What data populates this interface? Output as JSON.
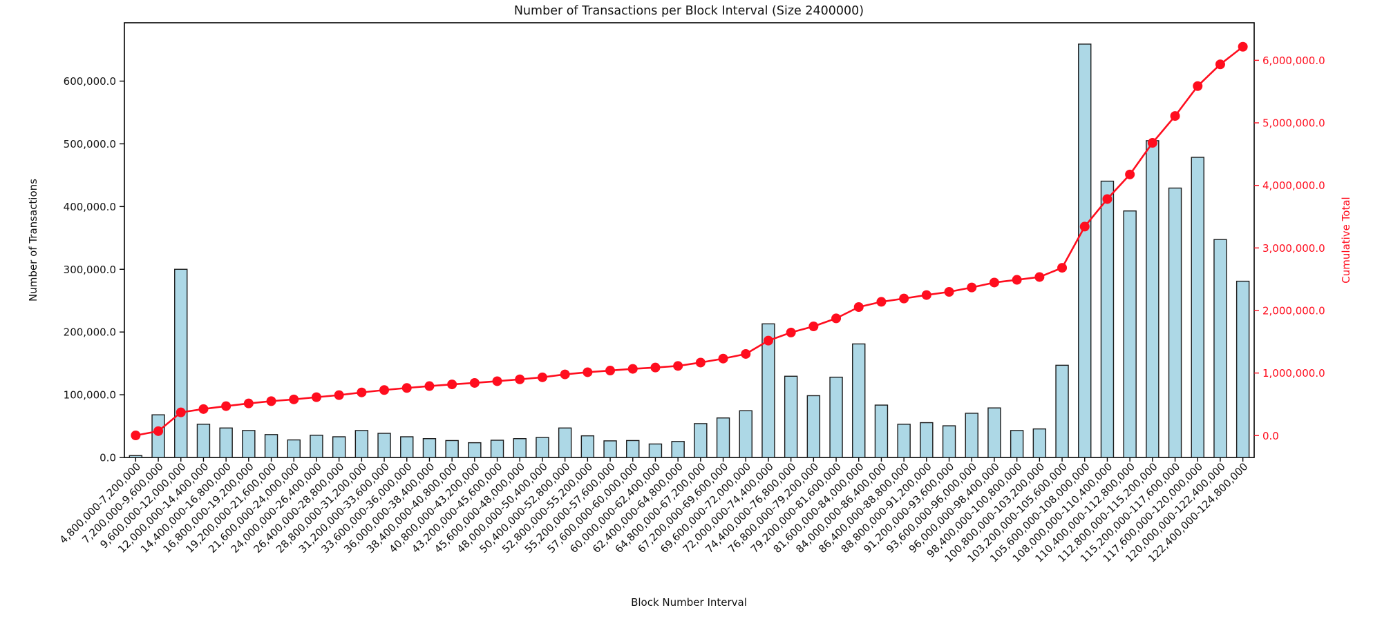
{
  "chart_data": {
    "type": "bar",
    "title": "Number of Transactions per Block Interval (Size 2400000)",
    "xlabel": "Block Number Interval",
    "ylabel_left": "Number of Transactions",
    "ylabel_right": "Cumulative Total",
    "grid": false,
    "legend_position": "none",
    "background_color": "#ffffff",
    "categories": [
      "4,800,000-7,200,000",
      "7,200,000-9,600,000",
      "9,600,000-12,000,000",
      "12,000,000-14,400,000",
      "14,400,000-16,800,000",
      "16,800,000-19,200,000",
      "19,200,000-21,600,000",
      "21,600,000-24,000,000",
      "24,000,000-26,400,000",
      "26,400,000-28,800,000",
      "28,800,000-31,200,000",
      "31,200,000-33,600,000",
      "33,600,000-36,000,000",
      "36,000,000-38,400,000",
      "38,400,000-40,800,000",
      "40,800,000-43,200,000",
      "43,200,000-45,600,000",
      "45,600,000-48,000,000",
      "48,000,000-50,400,000",
      "50,400,000-52,800,000",
      "52,800,000-55,200,000",
      "55,200,000-57,600,000",
      "57,600,000-60,000,000",
      "60,000,000-62,400,000",
      "62,400,000-64,800,000",
      "64,800,000-67,200,000",
      "67,200,000-69,600,000",
      "69,600,000-72,000,000",
      "72,000,000-74,400,000",
      "74,400,000-76,800,000",
      "76,800,000-79,200,000",
      "79,200,000-81,600,000",
      "81,600,000-84,000,000",
      "84,000,000-86,400,000",
      "86,400,000-88,800,000",
      "88,800,000-91,200,000",
      "91,200,000-93,600,000",
      "93,600,000-96,000,000",
      "96,000,000-98,400,000",
      "98,400,000-100,800,000",
      "100,800,000-103,200,000",
      "103,200,000-105,600,000",
      "105,600,000-108,000,000",
      "108,000,000-110,400,000",
      "110,400,000-112,800,000",
      "112,800,000-115,200,000",
      "115,200,000-117,600,000",
      "117,600,000-120,000,000",
      "120,000,000-122,400,000",
      "122,400,000-124,800,000"
    ],
    "series": [
      {
        "name": "Number of Transactions",
        "type": "bar",
        "color": "#ADD8E6",
        "edge_color": "#1a1a1a",
        "values": [
          3000,
          68000,
          300000,
          53000,
          47000,
          43000,
          36500,
          28000,
          35500,
          33000,
          43000,
          38500,
          33000,
          30000,
          27000,
          23500,
          27500,
          30000,
          32000,
          47000,
          34500,
          26500,
          27000,
          21500,
          25500,
          54000,
          63000,
          74500,
          213000,
          129500,
          98500,
          128000,
          181000,
          83500,
          53000,
          55500,
          50500,
          70500,
          79000,
          43000,
          45500,
          147000,
          659000,
          440500,
          393000,
          505000,
          429500,
          478500,
          347500,
          281000
        ]
      },
      {
        "name": "Cumulative Total",
        "type": "line",
        "color": "#ff0d1e",
        "marker": "circle",
        "values": [
          3000,
          71000,
          371000,
          424000,
          471000,
          514000,
          550500,
          578500,
          614000,
          647000,
          690000,
          728500,
          761500,
          791500,
          818500,
          842000,
          869500,
          899500,
          931500,
          978500,
          1013000,
          1039500,
          1066500,
          1088000,
          1113500,
          1167500,
          1230500,
          1305000,
          1518000,
          1647500,
          1746000,
          1874000,
          2055000,
          2138500,
          2191500,
          2247000,
          2297500,
          2368000,
          2447000,
          2490000,
          2535500,
          2682500,
          3341500,
          3782000,
          4175000,
          4680000,
          5109500,
          5588000,
          5935500,
          6216500
        ]
      }
    ],
    "left_axis": {
      "color": "#000000",
      "lim": [
        0,
        693000
      ],
      "ticks": [
        0,
        100000,
        200000,
        300000,
        400000,
        500000,
        600000
      ],
      "tick_labels": [
        "0.0",
        "100,000.0",
        "200,000.0",
        "300,000.0",
        "400,000.0",
        "500,000.0",
        "600,000.0"
      ]
    },
    "right_axis": {
      "color": "#ff0d1e",
      "lim": [
        -350000,
        6600000
      ],
      "ticks": [
        0,
        1000000,
        2000000,
        3000000,
        4000000,
        5000000,
        6000000
      ],
      "tick_labels": [
        "0.0",
        "1,000,000.0",
        "2,000,000.0",
        "3,000,000.0",
        "4,000,000.0",
        "5,000,000.0",
        "6,000,000.0"
      ]
    }
  }
}
